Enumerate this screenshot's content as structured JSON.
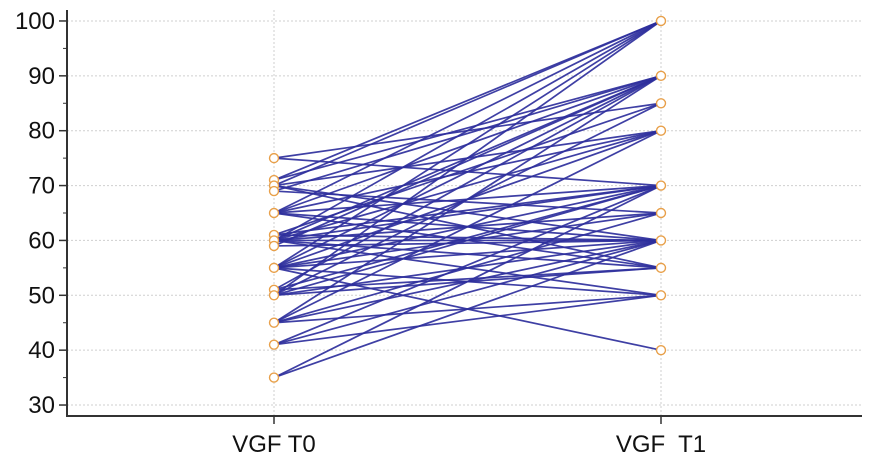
{
  "chart_data": {
    "type": "line",
    "categories": [
      "VGF T0",
      "VGF  T1"
    ],
    "ylim": [
      28,
      102
    ],
    "yticks": [
      30,
      40,
      50,
      60,
      70,
      80,
      90,
      100
    ],
    "grid": true,
    "colors": {
      "line": "#2e2f9c",
      "marker": "#e8a04a",
      "grid": "#cfcfcf",
      "axis": "#333333"
    },
    "pairs": [
      [
        75,
        70
      ],
      [
        75,
        85
      ],
      [
        71,
        100
      ],
      [
        71,
        90
      ],
      [
        70,
        100
      ],
      [
        70,
        80
      ],
      [
        70,
        60
      ],
      [
        70,
        55
      ],
      [
        69,
        90
      ],
      [
        69,
        65
      ],
      [
        65,
        100
      ],
      [
        65,
        90
      ],
      [
        65,
        80
      ],
      [
        65,
        70
      ],
      [
        65,
        60
      ],
      [
        65,
        55
      ],
      [
        61,
        85
      ],
      [
        61,
        70
      ],
      [
        61,
        60
      ],
      [
        60,
        100
      ],
      [
        60,
        90
      ],
      [
        60,
        80
      ],
      [
        60,
        70
      ],
      [
        60,
        65
      ],
      [
        60,
        60
      ],
      [
        60,
        55
      ],
      [
        60,
        50
      ],
      [
        59,
        90
      ],
      [
        59,
        60
      ],
      [
        55,
        100
      ],
      [
        55,
        90
      ],
      [
        55,
        80
      ],
      [
        55,
        70
      ],
      [
        55,
        65
      ],
      [
        55,
        60
      ],
      [
        55,
        50
      ],
      [
        55,
        40
      ],
      [
        51,
        90
      ],
      [
        51,
        70
      ],
      [
        51,
        55
      ],
      [
        50,
        100
      ],
      [
        50,
        85
      ],
      [
        50,
        70
      ],
      [
        50,
        60
      ],
      [
        50,
        55
      ],
      [
        45,
        90
      ],
      [
        45,
        80
      ],
      [
        45,
        65
      ],
      [
        45,
        60
      ],
      [
        45,
        50
      ],
      [
        41,
        70
      ],
      [
        41,
        60
      ],
      [
        41,
        50
      ],
      [
        35,
        70
      ],
      [
        35,
        60
      ]
    ]
  }
}
